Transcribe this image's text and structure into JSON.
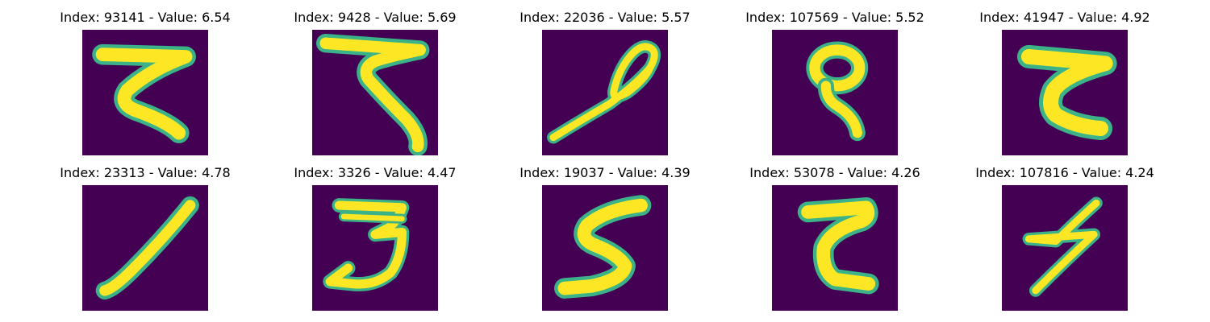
{
  "colors": {
    "background": "#440154",
    "stroke": "#fde725",
    "edge": "#3bb287"
  },
  "panels": [
    {
      "title": "Index: 93141 - Value: 6.54",
      "glyph": "handwritten-stroke-z-shape"
    },
    {
      "title": "Index: 9428 - Value: 5.69",
      "glyph": "handwritten-stroke-seven-shape"
    },
    {
      "title": "Index: 22036 - Value: 5.57",
      "glyph": "handwritten-stroke-loop-diagonal"
    },
    {
      "title": "Index: 107569 - Value: 5.52",
      "glyph": "handwritten-stroke-loop-nine"
    },
    {
      "title": "Index: 41947 - Value: 4.92",
      "glyph": "handwritten-stroke-z-shape"
    },
    {
      "title": "Index: 23313 - Value: 4.78",
      "glyph": "handwritten-stroke-diagonal-one"
    },
    {
      "title": "Index: 3326 - Value: 4.47",
      "glyph": "handwritten-stroke-three"
    },
    {
      "title": "Index: 19037 - Value: 4.39",
      "glyph": "handwritten-stroke-five"
    },
    {
      "title": "Index: 53078 - Value: 4.26",
      "glyph": "handwritten-stroke-z-shape"
    },
    {
      "title": "Index: 107816 - Value: 4.24",
      "glyph": "handwritten-stroke-lightning"
    }
  ]
}
